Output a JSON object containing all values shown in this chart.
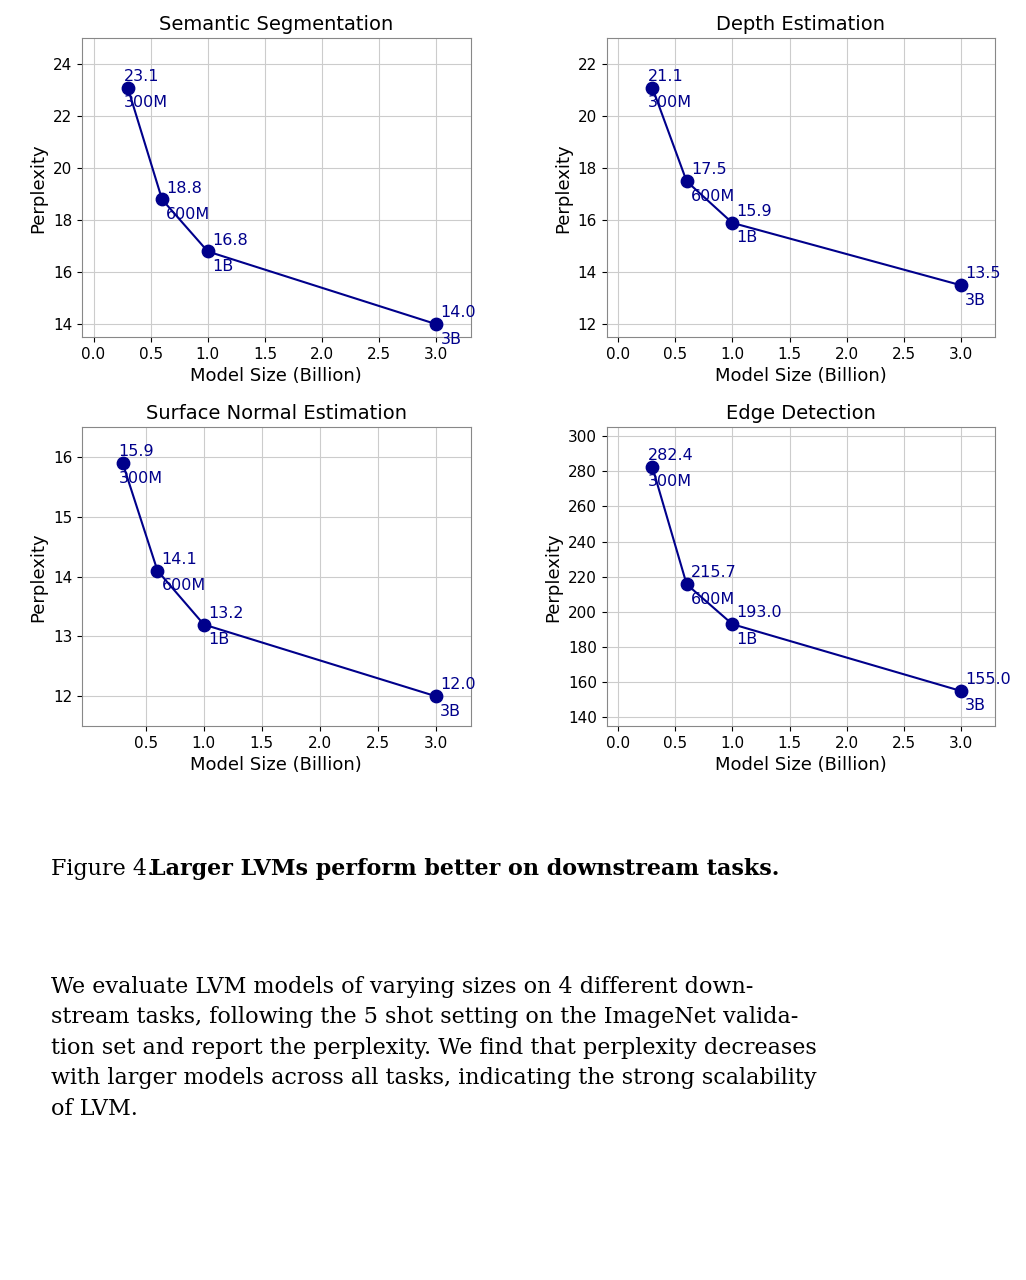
{
  "subplots": [
    {
      "title": "Semantic Segmentation",
      "x": [
        0.3,
        0.6,
        1.0,
        3.0
      ],
      "y": [
        23.1,
        18.8,
        16.8,
        14.0
      ],
      "labels": [
        "300M",
        "600M",
        "1B",
        "3B"
      ],
      "xlabel": "Model Size (Billion)",
      "ylabel": "Perplexity",
      "ylim": [
        13.5,
        25.0
      ],
      "yticks": [
        14,
        16,
        18,
        20,
        22,
        24
      ],
      "xlim": [
        -0.1,
        3.3
      ],
      "xticks": [
        0.0,
        0.5,
        1.0,
        1.5,
        2.0,
        2.5,
        3.0
      ]
    },
    {
      "title": "Depth Estimation",
      "x": [
        0.3,
        0.6,
        1.0,
        3.0
      ],
      "y": [
        21.1,
        17.5,
        15.9,
        13.5
      ],
      "labels": [
        "300M",
        "600M",
        "1B",
        "3B"
      ],
      "xlabel": "Model Size (Billion)",
      "ylabel": "Perplexity",
      "ylim": [
        11.5,
        23.0
      ],
      "yticks": [
        12,
        14,
        16,
        18,
        20,
        22
      ],
      "xlim": [
        -0.1,
        3.3
      ],
      "xticks": [
        0.0,
        0.5,
        1.0,
        1.5,
        2.0,
        2.5,
        3.0
      ]
    },
    {
      "title": "Surface Normal Estimation",
      "x": [
        0.3,
        0.6,
        1.0,
        3.0
      ],
      "y": [
        15.9,
        14.1,
        13.2,
        12.0
      ],
      "labels": [
        "300M",
        "600M",
        "1B",
        "3B"
      ],
      "xlabel": "Model Size (Billion)",
      "ylabel": "Perplexity",
      "ylim": [
        11.5,
        16.5
      ],
      "yticks": [
        12,
        13,
        14,
        15,
        16
      ],
      "xlim": [
        -0.05,
        3.3
      ],
      "xticks": [
        0.5,
        1.0,
        1.5,
        2.0,
        2.5,
        3.0
      ]
    },
    {
      "title": "Edge Detection",
      "x": [
        0.3,
        0.6,
        1.0,
        3.0
      ],
      "y": [
        282.4,
        215.7,
        193.0,
        155.0
      ],
      "labels": [
        "300M",
        "600M",
        "1B",
        "3B"
      ],
      "xlabel": "Model Size (Billion)",
      "ylabel": "Perplexity",
      "ylim": [
        135,
        305
      ],
      "yticks": [
        140,
        160,
        180,
        200,
        220,
        240,
        260,
        280,
        300
      ],
      "xlim": [
        -0.1,
        3.3
      ],
      "xticks": [
        0.0,
        0.5,
        1.0,
        1.5,
        2.0,
        2.5,
        3.0
      ]
    }
  ],
  "dot_color": "#00008B",
  "line_color": "#00008B",
  "dot_size": 80,
  "line_width": 1.5,
  "caption_bold_prefix": "Figure 4.  ",
  "caption_bold": "Larger LVMs perform better on downstream tasks.",
  "caption_normal": " We evaluate LVM models of varying sizes on 4 different downstream tasks, following the 5 shot setting on the ImageNet validation set and report the perplexity. We find that perplexity decreases with larger models across all tasks, indicating the strong scalability of LVM.",
  "bg_color": "#ffffff",
  "grid_color": "#cccccc",
  "annotation_fontsize": 11.5,
  "axis_label_fontsize": 13,
  "title_fontsize": 14,
  "tick_fontsize": 11
}
